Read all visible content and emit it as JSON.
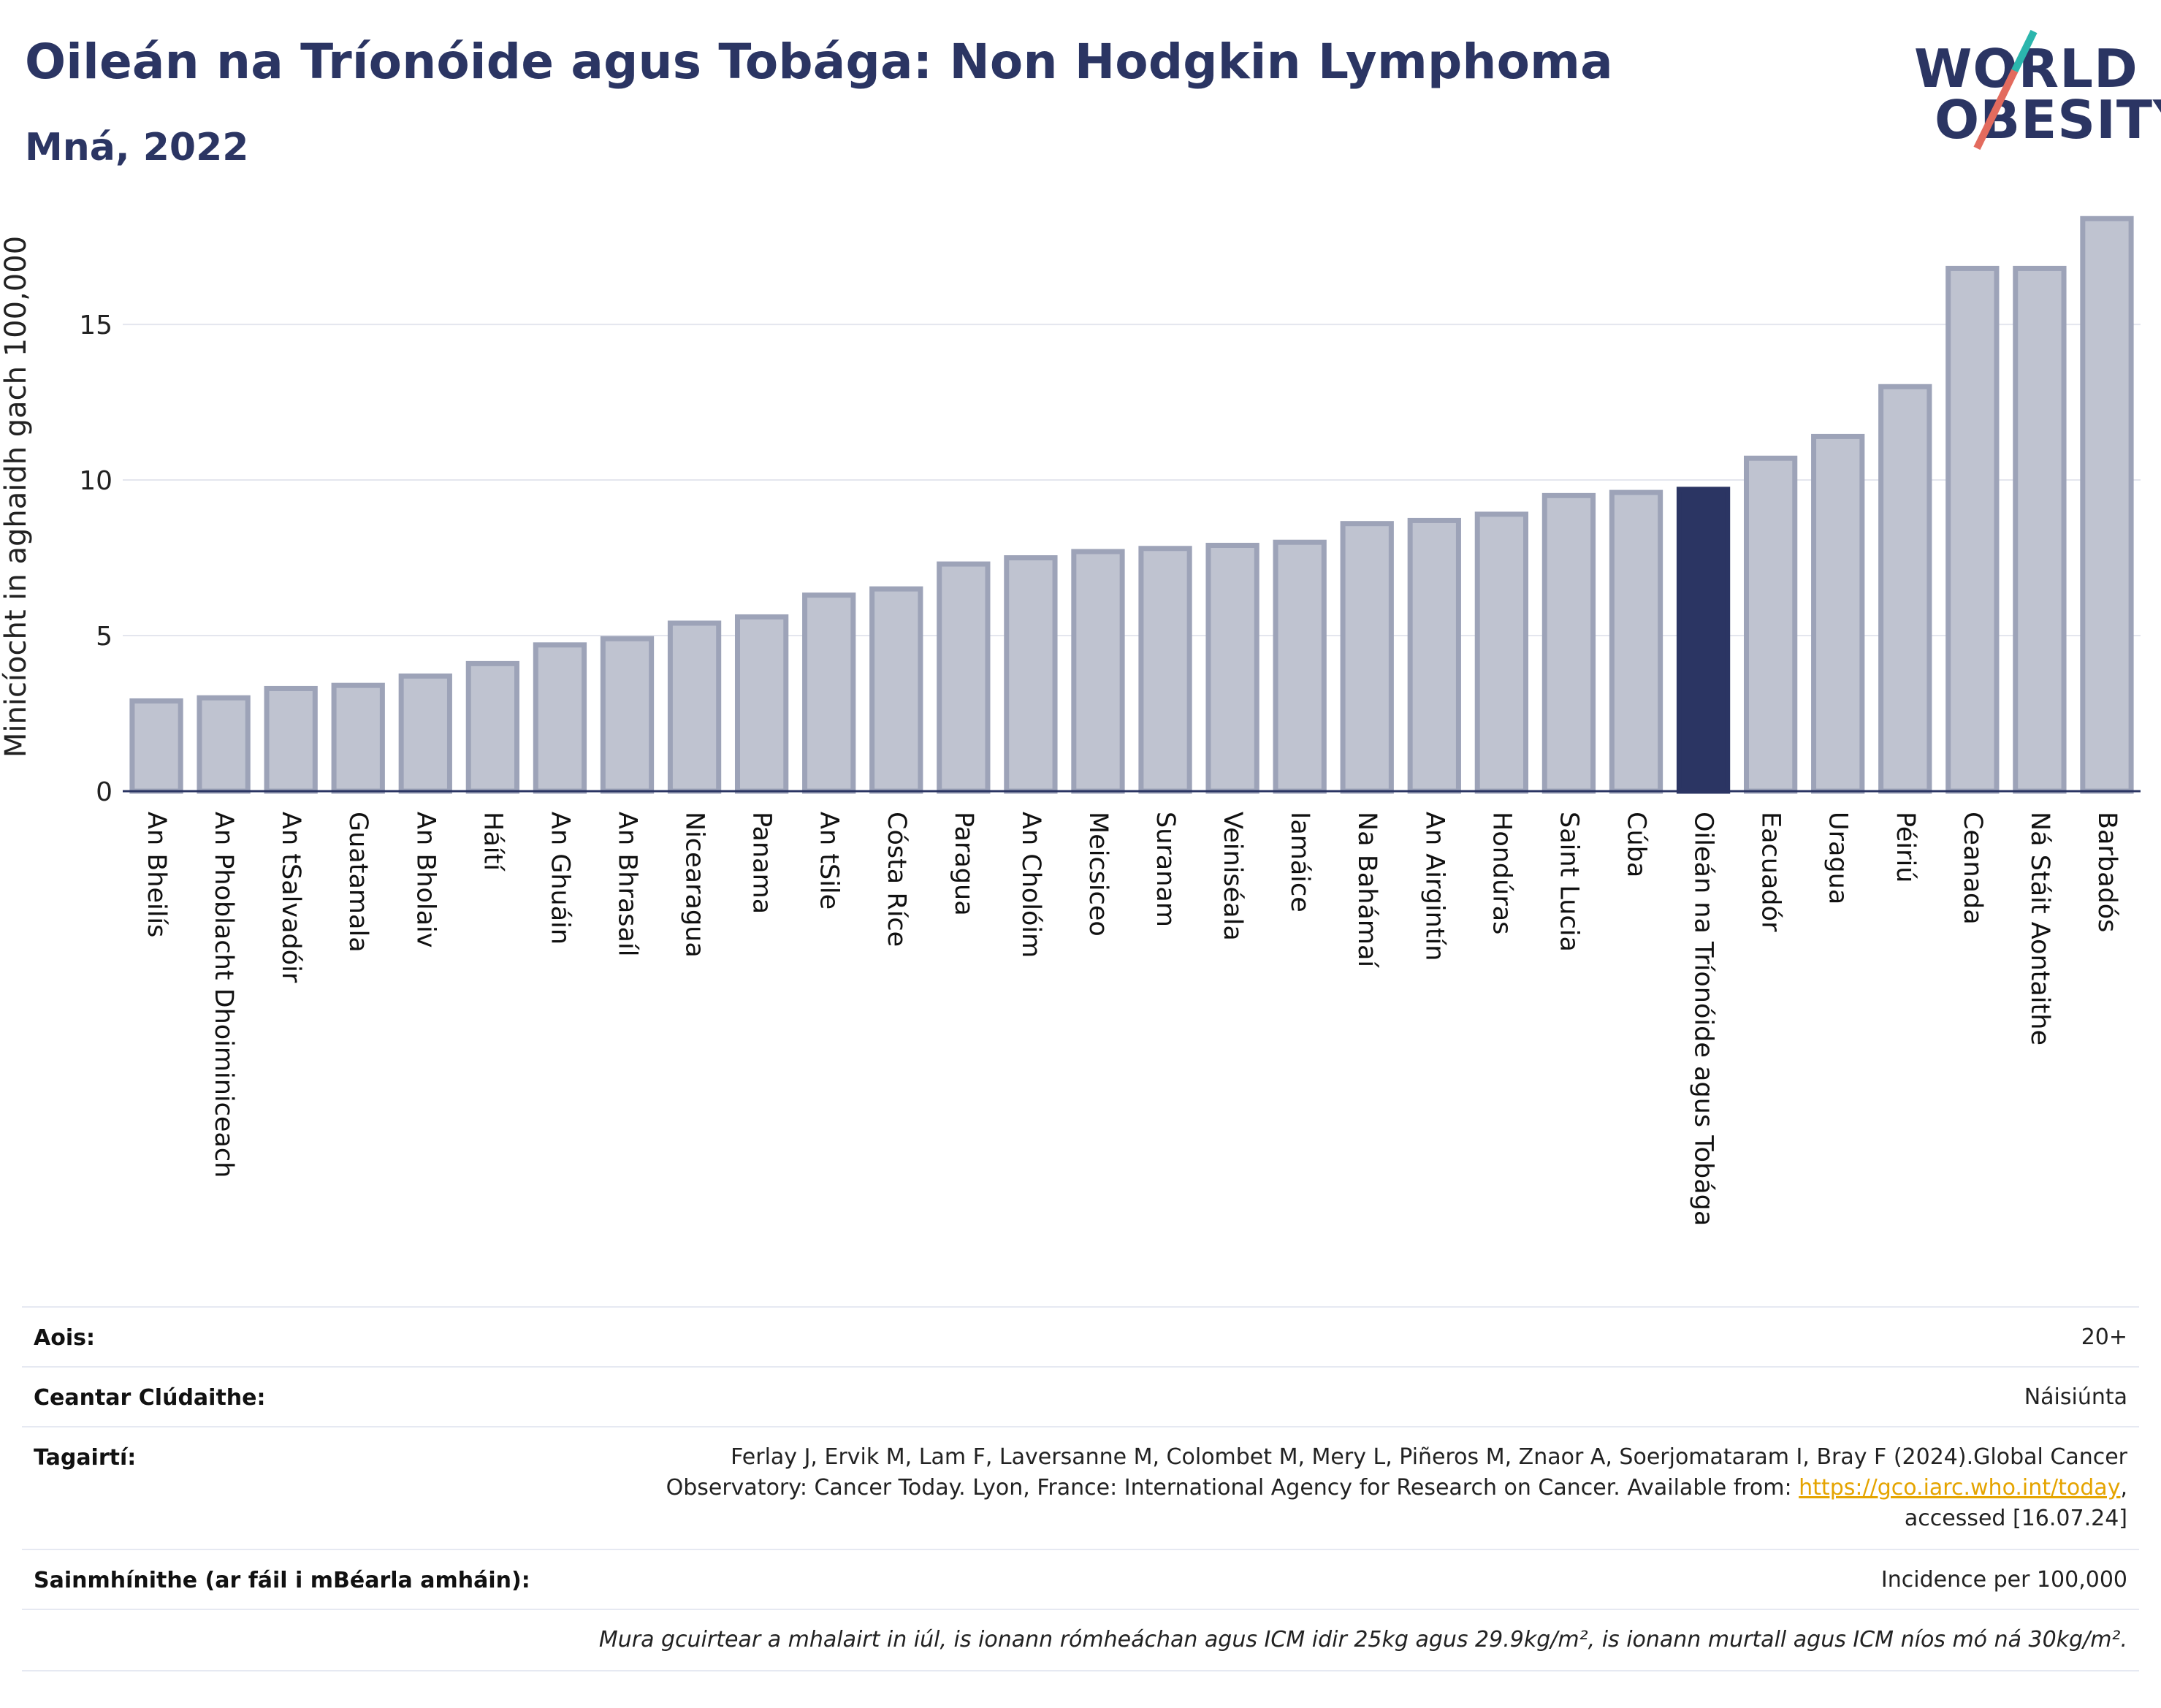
{
  "header": {
    "title": "Oileán na Tríonóide agus Tobága: Non Hodgkin Lymphoma",
    "subtitle": "Mná, 2022"
  },
  "logo": {
    "line1": "WORLD",
    "line2": "OBESITY",
    "slash_colors": [
      "#2bb6ad",
      "#e36b5e"
    ]
  },
  "chart_data": {
    "type": "bar",
    "ylabel": "Minicíocht in aghaidh gach 100,000",
    "ylim": [
      0,
      18.5
    ],
    "yticks": [
      0,
      5,
      10,
      15
    ],
    "grid": true,
    "highlight_color": "#2b3563",
    "bar_color": "#bfc3d0",
    "bar_edge_color": "#9da3b8",
    "highlight": "Oileán na Tríonóide agus Tobága",
    "categories": [
      "An Bheilís",
      "An Phoblacht Dhoiminiceach",
      "An tSalvadóir",
      "Guatamala",
      "An Bholaiv",
      "Háítí",
      "An Ghuáin",
      "An Bhrasaíl",
      "Nicearagua",
      "Panama",
      "An tSile",
      "Cósta Ríce",
      "Paragua",
      "An Cholóim",
      "Meicsiceo",
      "Suranam",
      "Veiniséala",
      "Iamáice",
      "Na Bahámaí",
      "An Airgintín",
      "Hondúras",
      "Saint Lucia",
      "Cúba",
      "Oileán na Tríonóide agus Tobága",
      "Eacuadór",
      "Uragua",
      "Péiriú",
      "Ceanada",
      "Ná Stáit Aontaithe",
      "Barbadós"
    ],
    "values": [
      2.9,
      3.0,
      3.3,
      3.4,
      3.7,
      4.1,
      4.7,
      4.9,
      5.4,
      5.6,
      6.3,
      6.5,
      7.3,
      7.5,
      7.7,
      7.8,
      7.9,
      8.0,
      8.6,
      8.7,
      8.9,
      9.5,
      9.6,
      9.7,
      10.7,
      11.4,
      13.0,
      16.8,
      16.8,
      18.4
    ]
  },
  "meta": {
    "age_label": "Aois:",
    "age_value": "20+",
    "coverage_label": "Ceantar Clúdaithe:",
    "coverage_value": "Náisiúnta",
    "refs_label": "Tagairtí:",
    "refs_line1": "Ferlay J, Ervik M, Lam F, Laversanne M, Colombet M, Mery L, Piñeros M, Znaor A, Soerjomataram I, Bray F (2024).Global Cancer",
    "refs_line2_pre": "Observatory: Cancer Today. Lyon, France: International Agency for Research on Cancer. Available from: ",
    "refs_link": "https://gco.iarc.who.int/today",
    "refs_line2_post": ",",
    "refs_line3": "accessed [16.07.24]",
    "defs_label": "Sainmhínithe (ar fáil i mBéarla amháin):",
    "defs_value": "Incidence per 100,000",
    "note": "Mura gcuirtear a mhalairt in iúl, is ionann rómheáchan agus ICM idir 25kg agus 29.9kg/m², is ionann murtall agus ICM níos mó ná 30kg/m²."
  }
}
